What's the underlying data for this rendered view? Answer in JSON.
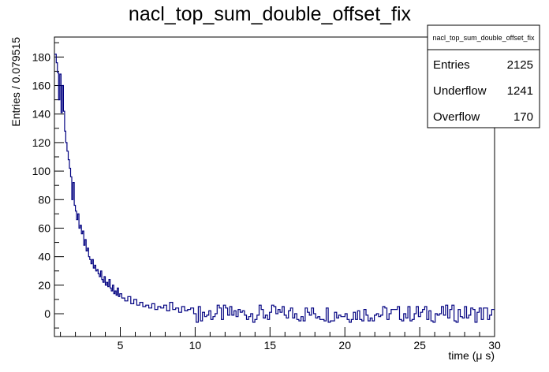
{
  "chart_data": {
    "type": "histogram",
    "title": "nacl_top_sum_double_offset_fix",
    "xlabel": "time (μ s)",
    "ylabel": "Entries / 0.079515",
    "xlim": [
      0.6,
      30.0
    ],
    "ylim": [
      -16,
      194
    ],
    "x_ticks": [
      5,
      10,
      15,
      20,
      25,
      30
    ],
    "y_ticks": [
      0,
      20,
      40,
      60,
      80,
      100,
      120,
      140,
      160,
      180
    ],
    "bin_width": 0.079515,
    "line_color": "#000080",
    "grid": false,
    "stats_box": {
      "placement": "top-right",
      "name": "nacl_top_sum_double_offset_fix",
      "rows": [
        {
          "label": "Entries",
          "value": "2125"
        },
        {
          "label": "Underflow",
          "value": "1241"
        },
        {
          "label": "Overflow",
          "value": "170"
        }
      ]
    },
    "series": [
      {
        "x": [
          0.68,
          0.76,
          0.84,
          0.92,
          1.0,
          1.08,
          1.16,
          1.24,
          1.32,
          1.4,
          1.48,
          1.56,
          1.64,
          1.72,
          1.8,
          1.88,
          1.96,
          2.04,
          2.12,
          2.2,
          2.28,
          2.36,
          2.44,
          2.52,
          2.6,
          2.68,
          2.76,
          2.84,
          2.92,
          3.0,
          3.08,
          3.16,
          3.24,
          3.32,
          3.4,
          3.48,
          3.56,
          3.64,
          3.72,
          3.8,
          3.88,
          3.96,
          4.04,
          4.12,
          4.2,
          4.28,
          4.36,
          4.44,
          4.52,
          4.6,
          4.68,
          4.76,
          4.84,
          4.92,
          5.0,
          5.2,
          5.4,
          5.6,
          5.8,
          6.0,
          6.2,
          6.4,
          6.6,
          6.8,
          7.0,
          7.2,
          7.4,
          7.6,
          7.8,
          8.0,
          8.2,
          8.4,
          8.6,
          8.8,
          9.0,
          9.2,
          9.4,
          9.6,
          9.8,
          10.0
        ],
        "y": [
          182,
          176,
          169,
          150,
          168,
          141,
          160,
          142,
          128,
          120,
          114,
          108,
          102,
          96,
          80,
          92,
          76,
          72,
          66,
          70,
          60,
          62,
          56,
          58,
          48,
          52,
          44,
          46,
          40,
          38,
          35,
          38,
          32,
          34,
          30,
          31,
          28,
          26,
          30,
          24,
          22,
          26,
          20,
          22,
          19,
          24,
          18,
          16,
          20,
          14,
          16,
          13,
          18,
          12,
          14,
          11,
          9,
          12,
          7,
          10,
          6,
          8,
          5,
          6,
          4,
          7,
          3,
          5,
          4,
          6,
          2,
          8,
          3,
          4,
          1,
          5,
          2,
          3,
          4,
          0
        ]
      }
    ]
  }
}
